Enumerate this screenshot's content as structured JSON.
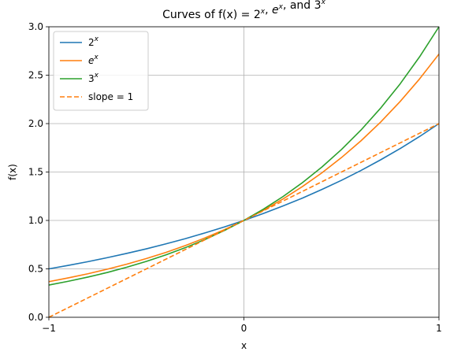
{
  "chart_data": {
    "type": "line",
    "title": {
      "prefix": "Curves of f(x) = ",
      "parts": [
        {
          "base": "2",
          "exp": "x",
          "italic": false
        },
        {
          "sep": ", "
        },
        {
          "base": "e",
          "exp": "x",
          "italic": true
        },
        {
          "sep": ", and "
        },
        {
          "base": "3",
          "exp": "x",
          "italic": false
        }
      ]
    },
    "xlabel": "x",
    "ylabel": "f(x)",
    "xlim": [
      -1,
      1
    ],
    "ylim": [
      0,
      3
    ],
    "xticks": [
      -1,
      0,
      1
    ],
    "xtick_labels": [
      "−1",
      "0",
      "1"
    ],
    "yticks": [
      0.0,
      0.5,
      1.0,
      1.5,
      2.0,
      2.5,
      3.0
    ],
    "ytick_labels": [
      "0.0",
      "0.5",
      "1.0",
      "1.5",
      "2.0",
      "2.5",
      "3.0"
    ],
    "grid": true,
    "legend_position": "top-left",
    "series": [
      {
        "name": "2^x",
        "legend_base": "2",
        "legend_exp": "x",
        "legend_italic": false,
        "color": "#1f77b4",
        "dash": "solid",
        "x": [
          -1.0,
          -0.9,
          -0.8,
          -0.7,
          -0.6,
          -0.5,
          -0.4,
          -0.3,
          -0.2,
          -0.1,
          0.0,
          0.1,
          0.2,
          0.3,
          0.4,
          0.5,
          0.6,
          0.7,
          0.8,
          0.9,
          1.0
        ],
        "y": [
          0.5,
          0.536,
          0.574,
          0.616,
          0.66,
          0.707,
          0.758,
          0.812,
          0.871,
          0.933,
          1.0,
          1.072,
          1.149,
          1.231,
          1.32,
          1.414,
          1.516,
          1.625,
          1.741,
          1.866,
          2.0
        ]
      },
      {
        "name": "e^x",
        "legend_base": "e",
        "legend_exp": "x",
        "legend_italic": true,
        "color": "#ff7f0e",
        "dash": "solid",
        "x": [
          -1.0,
          -0.9,
          -0.8,
          -0.7,
          -0.6,
          -0.5,
          -0.4,
          -0.3,
          -0.2,
          -0.1,
          0.0,
          0.1,
          0.2,
          0.3,
          0.4,
          0.5,
          0.6,
          0.7,
          0.8,
          0.9,
          1.0
        ],
        "y": [
          0.368,
          0.407,
          0.449,
          0.497,
          0.549,
          0.607,
          0.67,
          0.741,
          0.819,
          0.905,
          1.0,
          1.105,
          1.221,
          1.35,
          1.492,
          1.649,
          1.822,
          2.014,
          2.226,
          2.46,
          2.718
        ]
      },
      {
        "name": "3^x",
        "legend_base": "3",
        "legend_exp": "x",
        "legend_italic": false,
        "color": "#2ca02c",
        "dash": "solid",
        "x": [
          -1.0,
          -0.9,
          -0.8,
          -0.7,
          -0.6,
          -0.5,
          -0.4,
          -0.3,
          -0.2,
          -0.1,
          0.0,
          0.1,
          0.2,
          0.3,
          0.4,
          0.5,
          0.6,
          0.7,
          0.8,
          0.9,
          1.0
        ],
        "y": [
          0.333,
          0.372,
          0.415,
          0.463,
          0.517,
          0.577,
          0.644,
          0.719,
          0.803,
          0.896,
          1.0,
          1.116,
          1.246,
          1.39,
          1.552,
          1.732,
          1.933,
          2.158,
          2.408,
          2.688,
          3.0
        ]
      },
      {
        "name": "slope = 1",
        "legend_base": "slope = 1",
        "legend_exp": "",
        "legend_italic": false,
        "color": "#ff7f0e",
        "dash": "dashed",
        "x": [
          -1.0,
          1.0
        ],
        "y": [
          0.0,
          2.0
        ]
      }
    ]
  }
}
